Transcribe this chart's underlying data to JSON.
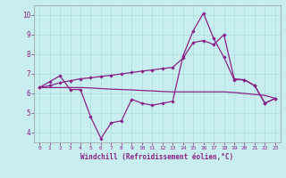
{
  "x": [
    0,
    1,
    2,
    3,
    4,
    5,
    6,
    7,
    8,
    9,
    10,
    11,
    12,
    13,
    14,
    15,
    16,
    17,
    18,
    19,
    20,
    21,
    22,
    23
  ],
  "line_jagged": [
    6.3,
    6.6,
    6.9,
    6.2,
    6.2,
    4.8,
    3.7,
    4.5,
    4.6,
    5.7,
    5.5,
    5.4,
    5.5,
    5.6,
    7.9,
    9.2,
    10.1,
    8.8,
    7.85,
    6.7,
    6.7,
    6.4,
    5.5,
    5.75
  ],
  "line_diagonal": [
    6.3,
    6.4,
    6.55,
    6.65,
    6.75,
    6.8,
    6.87,
    6.93,
    7.0,
    7.07,
    7.14,
    7.2,
    7.27,
    7.33,
    7.8,
    8.6,
    8.7,
    8.5,
    9.0,
    6.75,
    6.7,
    6.4,
    5.5,
    5.75
  ],
  "line_flat": [
    6.3,
    6.3,
    6.3,
    6.3,
    6.3,
    6.28,
    6.25,
    6.22,
    6.2,
    6.18,
    6.15,
    6.13,
    6.1,
    6.08,
    6.08,
    6.08,
    6.08,
    6.08,
    6.08,
    6.05,
    6.0,
    5.95,
    5.9,
    5.75
  ],
  "line_color": "#882288",
  "bg_color": "#c8eef0",
  "grid_color": "#aadddd",
  "xlabel": "Windchill (Refroidissement éolien,°C)",
  "ylim": [
    3.5,
    10.5
  ],
  "xlim": [
    -0.5,
    23.5
  ],
  "yticks": [
    4,
    5,
    6,
    7,
    8,
    9,
    10
  ],
  "xticks": [
    0,
    1,
    2,
    3,
    4,
    5,
    6,
    7,
    8,
    9,
    10,
    11,
    12,
    13,
    14,
    15,
    16,
    17,
    18,
    19,
    20,
    21,
    22,
    23
  ]
}
